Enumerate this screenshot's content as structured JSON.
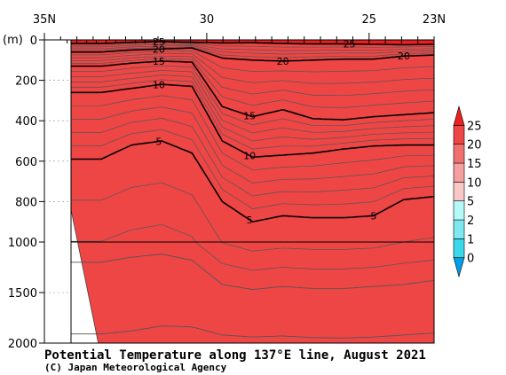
{
  "chart_data": {
    "type": "heatmap",
    "title": "Potential Temperature along 137°E line, August 2021",
    "credit": "(C) Japan Meteorological Agency",
    "xlabel": "",
    "ylabel": "(m)",
    "x_unit": "°N",
    "xlim": [
      35,
      23
    ],
    "x_ticks": [
      {
        "value": 35,
        "label": "35N"
      },
      {
        "value": 30,
        "label": "30"
      },
      {
        "value": 25,
        "label": "25"
      },
      {
        "value": 23,
        "label": "23N"
      }
    ],
    "y_ticks": [
      {
        "value": 0,
        "label": "0"
      },
      {
        "value": 200,
        "label": "200"
      },
      {
        "value": 400,
        "label": "400"
      },
      {
        "value": 600,
        "label": "600"
      },
      {
        "value": 800,
        "label": "800"
      },
      {
        "value": 1000,
        "label": "1000"
      },
      {
        "value": 1500,
        "label": "1500"
      },
      {
        "value": 2000,
        "label": "2000"
      }
    ],
    "y_scale": "piecewise linear: 0-1000 m upper panel, 1000-2000 m compressed lower panel",
    "colorbar": {
      "levels": [
        0,
        1,
        2,
        5,
        10,
        15,
        20,
        25
      ],
      "colors": [
        "#00a0e8",
        "#3bd8ec",
        "#7ee8f0",
        "#b4f8f8",
        "#fbc8c8",
        "#f5a0a0",
        "#f07070",
        "#ee4545",
        "#e82020"
      ]
    },
    "station_lats": [
      34.3,
      34.0,
      33.7,
      33.4,
      33.1,
      32.8,
      32.5,
      32.2,
      31.9,
      31.6,
      31.3,
      31.0,
      30.5,
      30.0,
      29.5,
      29.0,
      28.5,
      28.0,
      27.5,
      27.0,
      26.5,
      26.0,
      25.5,
      25.0,
      24.5,
      24.0,
      23.5,
      23.0
    ],
    "isotherms": [
      {
        "value": 25,
        "label": "25",
        "lat": [
          34.0,
          33.0,
          32.0,
          31.0,
          30.0,
          29.0,
          28.0,
          27.0,
          26.0,
          25.0,
          24.0,
          23.0
        ],
        "depth": [
          18,
          12,
          8,
          12,
          15,
          14,
          18,
          20,
          20,
          22,
          24,
          22
        ]
      },
      {
        "value": 20,
        "label": "20",
        "lat": [
          34.0,
          33.0,
          32.0,
          31.0,
          30.0,
          29.0,
          28.0,
          27.0,
          26.0,
          25.0,
          24.0,
          23.0
        ],
        "depth": [
          60,
          50,
          45,
          40,
          90,
          100,
          105,
          100,
          95,
          95,
          80,
          75
        ]
      },
      {
        "value": 15,
        "label": "15",
        "lat": [
          34.0,
          33.0,
          32.0,
          31.0,
          30.0,
          29.0,
          28.0,
          27.0,
          26.0,
          25.0,
          24.0,
          23.0
        ],
        "depth": [
          130,
          115,
          105,
          110,
          330,
          380,
          345,
          390,
          395,
          380,
          370,
          360
        ]
      },
      {
        "value": 10,
        "label": "10",
        "lat": [
          34.0,
          33.0,
          32.0,
          31.0,
          30.0,
          29.0,
          28.0,
          27.0,
          26.0,
          25.0,
          24.0,
          23.0
        ],
        "depth": [
          260,
          240,
          220,
          230,
          500,
          580,
          570,
          560,
          540,
          525,
          520,
          520
        ]
      },
      {
        "value": 5,
        "label": "5",
        "lat": [
          34.0,
          33.0,
          32.0,
          31.0,
          30.0,
          29.0,
          28.0,
          27.0,
          26.0,
          25.0,
          24.0,
          23.0
        ],
        "depth": [
          590,
          520,
          500,
          560,
          800,
          900,
          870,
          880,
          880,
          870,
          790,
          775
        ]
      },
      {
        "value": 2,
        "label": "",
        "lat": [
          34.0,
          33.0,
          32.0,
          31.0,
          30.0,
          29.0,
          28.0,
          27.0,
          26.0,
          25.0,
          24.0,
          23.0
        ],
        "depth": [
          1200,
          1150,
          1120,
          1180,
          1420,
          1470,
          1440,
          1460,
          1460,
          1440,
          1420,
          1380
        ]
      },
      {
        "value": 1,
        "label": "",
        "lat": [
          34.0,
          33.0,
          32.0,
          31.0,
          30.0,
          29.0,
          28.0,
          27.0,
          26.0,
          25.0,
          24.0,
          23.0
        ],
        "depth": [
          1910,
          1880,
          1830,
          1840,
          1920,
          1940,
          1930,
          1945,
          1950,
          1940,
          1920,
          1900
        ]
      }
    ],
    "seafloor": {
      "lat": [
        35.0,
        34.1,
        34.05
      ],
      "depth": [
        840,
        2000,
        2000
      ]
    },
    "grid": false,
    "legend": "colorbar right"
  }
}
